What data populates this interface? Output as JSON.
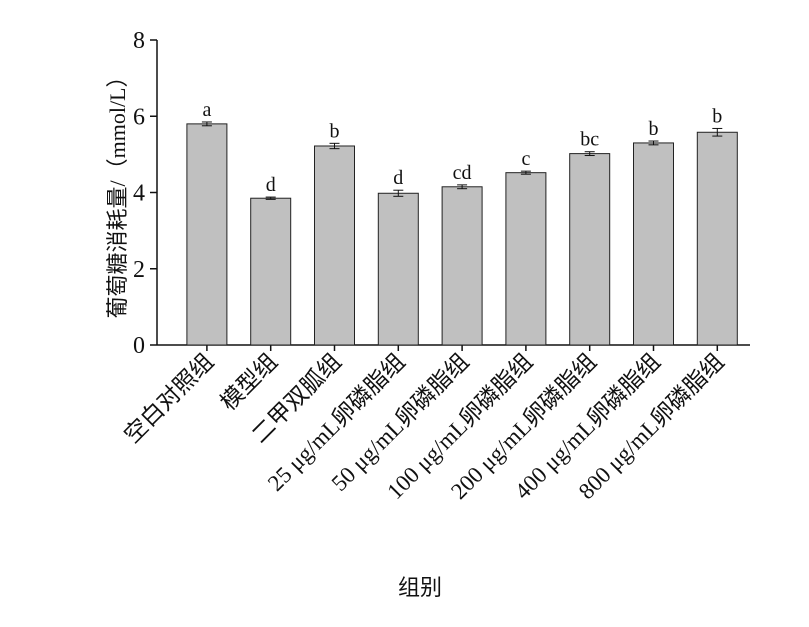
{
  "chart_data": {
    "type": "bar",
    "y_label": "葡萄糖消耗量/（mmol/L）",
    "x_label": "组别",
    "categories": [
      "空白对照组",
      "模型组",
      "二甲双胍组",
      "25 μg/mL卵磷脂组",
      "50 μg/mL卵磷脂组",
      "100 μg/mL卵磷脂组",
      "200 μg/mL卵磷脂组",
      "400 μg/mL卵磷脂组",
      "800 μg/mL卵磷脂组"
    ],
    "values": [
      5.8,
      3.85,
      5.22,
      3.98,
      4.15,
      4.52,
      5.02,
      5.3,
      5.58
    ],
    "errors": [
      0.05,
      0.03,
      0.07,
      0.08,
      0.05,
      0.04,
      0.05,
      0.05,
      0.1
    ],
    "significance": [
      "a",
      "d",
      "b",
      "d",
      "cd",
      "c",
      "bc",
      "b",
      "b"
    ],
    "color": "#c0c0c0",
    "ylim": [
      0,
      8
    ],
    "yticks": [
      0,
      2,
      4,
      6,
      8
    ]
  }
}
